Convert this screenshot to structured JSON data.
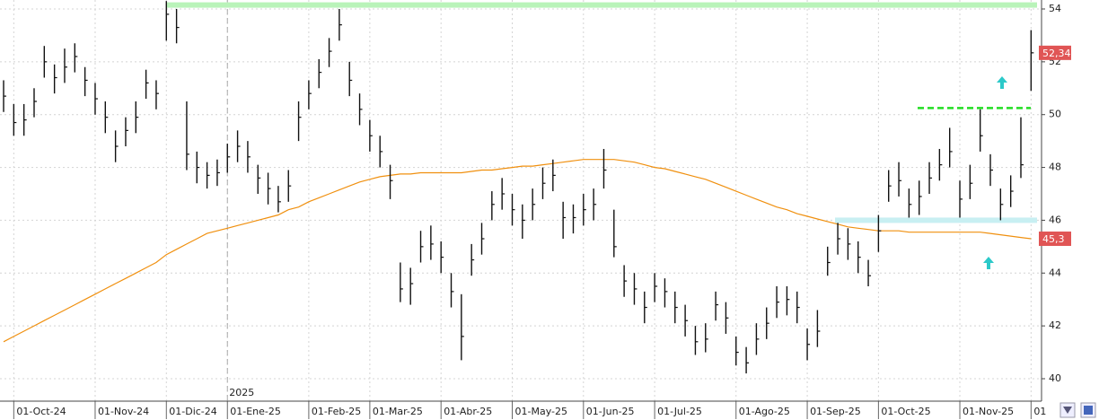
{
  "chart_data": {
    "type": "ohlc",
    "categories": [
      null,
      "01-Oct-24",
      null,
      null,
      null,
      null,
      null,
      null,
      null,
      "01-Nov-24",
      null,
      null,
      null,
      null,
      null,
      null,
      "01-Dic-24",
      null,
      null,
      null,
      null,
      null,
      "01-Ene-25",
      null,
      null,
      null,
      null,
      null,
      null,
      null,
      "01-Feb-25",
      null,
      null,
      null,
      null,
      null,
      "01-Mar-25",
      null,
      null,
      null,
      null,
      null,
      null,
      "01-Abr-25",
      null,
      null,
      null,
      null,
      null,
      null,
      "01-May-25",
      null,
      null,
      null,
      null,
      null,
      null,
      "01-Jun-25",
      null,
      null,
      null,
      null,
      null,
      null,
      "01-Jul-25",
      null,
      null,
      null,
      null,
      null,
      null,
      null,
      "01-Ago-25",
      null,
      null,
      null,
      null,
      null,
      null,
      "01-Sep-25",
      null,
      null,
      null,
      null,
      null,
      null,
      "01-Oct-25",
      null,
      null,
      null,
      null,
      null,
      null,
      null,
      "01-Nov-25",
      null,
      null,
      null,
      null,
      null,
      null,
      "01"
    ],
    "high": [
      51.3,
      50.4,
      50.4,
      51.0,
      52.6,
      51.9,
      52.5,
      52.7,
      51.8,
      51.2,
      50.5,
      49.4,
      49.9,
      50.5,
      51.7,
      51.3,
      54.3,
      54.0,
      50.5,
      48.6,
      48.2,
      48.3,
      48.9,
      49.4,
      49.0,
      48.1,
      47.8,
      47.3,
      47.9,
      50.5,
      51.3,
      52.1,
      52.9,
      54.0,
      52.0,
      50.8,
      49.8,
      49.2,
      48.1,
      44.4,
      44.2,
      45.6,
      45.8,
      45.2,
      44.0,
      43.2,
      45.1,
      45.9,
      47.1,
      47.6,
      47.0,
      46.6,
      47.2,
      48.0,
      48.3,
      46.7,
      46.6,
      47.0,
      47.2,
      48.7,
      46.4,
      44.3,
      44.0,
      43.3,
      44.0,
      43.8,
      43.3,
      42.8,
      42.0,
      42.1,
      43.3,
      42.9,
      41.6,
      41.2,
      42.1,
      42.7,
      43.5,
      43.5,
      43.3,
      41.9,
      42.6,
      45.0,
      45.9,
      45.7,
      45.2,
      44.5,
      46.2,
      47.9,
      48.2,
      47.2,
      47.5,
      48.2,
      48.7,
      49.5,
      47.5,
      48.1,
      50.2,
      48.5,
      47.2,
      47.7,
      49.9,
      53.2
    ],
    "low": [
      50.1,
      49.2,
      49.2,
      49.9,
      51.4,
      50.8,
      51.2,
      51.6,
      50.7,
      50.0,
      49.3,
      48.2,
      48.8,
      49.3,
      50.6,
      50.2,
      52.8,
      52.7,
      47.9,
      47.4,
      47.2,
      47.3,
      47.8,
      48.2,
      47.8,
      47.0,
      46.6,
      46.3,
      46.7,
      49.0,
      50.2,
      51.0,
      51.8,
      52.8,
      50.7,
      49.6,
      48.6,
      48.0,
      46.8,
      42.9,
      42.8,
      44.4,
      44.5,
      44.0,
      42.7,
      40.7,
      43.9,
      44.7,
      46.0,
      46.4,
      45.8,
      45.3,
      46.0,
      46.8,
      47.1,
      45.3,
      45.5,
      45.8,
      46.0,
      47.2,
      44.6,
      43.1,
      42.8,
      42.1,
      42.9,
      42.7,
      42.1,
      41.6,
      40.9,
      41.0,
      42.2,
      41.7,
      40.5,
      40.2,
      40.9,
      41.5,
      42.3,
      42.4,
      42.1,
      40.7,
      41.2,
      43.9,
      44.7,
      44.5,
      44.0,
      43.5,
      44.8,
      46.7,
      46.9,
      46.1,
      46.2,
      47.0,
      47.5,
      48.0,
      46.1,
      46.8,
      48.6,
      47.3,
      46.0,
      46.5,
      47.6,
      50.9
    ],
    "close": [
      50.7,
      49.7,
      49.8,
      50.5,
      52.0,
      51.4,
      51.8,
      52.2,
      51.3,
      50.6,
      49.9,
      48.8,
      49.4,
      49.9,
      51.2,
      50.8,
      53.8,
      53.3,
      48.5,
      48.0,
      47.7,
      47.8,
      48.4,
      48.8,
      48.4,
      47.6,
      47.2,
      46.7,
      47.3,
      49.9,
      50.8,
      51.6,
      52.4,
      53.4,
      51.3,
      50.2,
      49.2,
      48.6,
      47.5,
      43.4,
      43.6,
      45.0,
      45.1,
      44.6,
      43.3,
      41.6,
      44.5,
      45.3,
      46.6,
      47.0,
      46.4,
      46.0,
      46.6,
      47.4,
      47.7,
      46.1,
      46.1,
      46.4,
      46.6,
      47.9,
      45.0,
      43.7,
      43.4,
      42.7,
      43.5,
      43.3,
      42.7,
      42.2,
      41.4,
      41.5,
      42.8,
      42.3,
      41.0,
      40.6,
      41.5,
      42.1,
      42.9,
      43.0,
      42.7,
      41.3,
      41.8,
      44.4,
      45.3,
      45.1,
      44.6,
      43.9,
      45.6,
      47.3,
      47.5,
      46.6,
      46.9,
      47.6,
      48.1,
      48.6,
      46.8,
      47.4,
      49.2,
      47.9,
      46.6,
      47.1,
      48.1,
      52.34
    ],
    "bar_color": "#111111",
    "moving_average": {
      "color": "#f0900f",
      "values": [
        41.4,
        41.6,
        41.8,
        42.0,
        42.2,
        42.4,
        42.6,
        42.8,
        43.0,
        43.2,
        43.4,
        43.6,
        43.8,
        44.0,
        44.2,
        44.4,
        44.7,
        44.9,
        45.1,
        45.3,
        45.5,
        45.6,
        45.7,
        45.8,
        45.9,
        46.0,
        46.1,
        46.2,
        46.4,
        46.5,
        46.7,
        46.85,
        47.0,
        47.15,
        47.3,
        47.45,
        47.55,
        47.65,
        47.7,
        47.75,
        47.75,
        47.8,
        47.8,
        47.8,
        47.8,
        47.8,
        47.85,
        47.9,
        47.9,
        47.95,
        48.0,
        48.05,
        48.05,
        48.1,
        48.15,
        48.2,
        48.25,
        48.3,
        48.3,
        48.3,
        48.3,
        48.25,
        48.2,
        48.1,
        48.0,
        47.95,
        47.85,
        47.75,
        47.65,
        47.55,
        47.4,
        47.25,
        47.1,
        46.95,
        46.8,
        46.65,
        46.5,
        46.4,
        46.25,
        46.15,
        46.05,
        45.95,
        45.85,
        45.75,
        45.7,
        45.65,
        45.6,
        45.6,
        45.6,
        45.55,
        45.55,
        45.55,
        45.55,
        45.55,
        45.55,
        45.55,
        45.55,
        45.5,
        45.45,
        45.4,
        45.35,
        45.3
      ]
    },
    "levels": [
      {
        "value": 54.15,
        "style": "band",
        "color": "#b9f3b9"
      },
      {
        "value": 46.0,
        "style": "band",
        "color": "#c8eff2"
      },
      {
        "value": 50.25,
        "style": "dashed",
        "color": "#22dd22"
      }
    ],
    "last_price": {
      "value": 52.34,
      "label": "52,34"
    },
    "ma_last": {
      "value": 45.3,
      "label": "45,3"
    },
    "tag_color": "#e05555",
    "year_marker": "2025",
    "ylim": [
      39.15,
      54.34
    ],
    "yticks": [
      40,
      42,
      44,
      46,
      48,
      50,
      52,
      54
    ],
    "grid": true
  }
}
